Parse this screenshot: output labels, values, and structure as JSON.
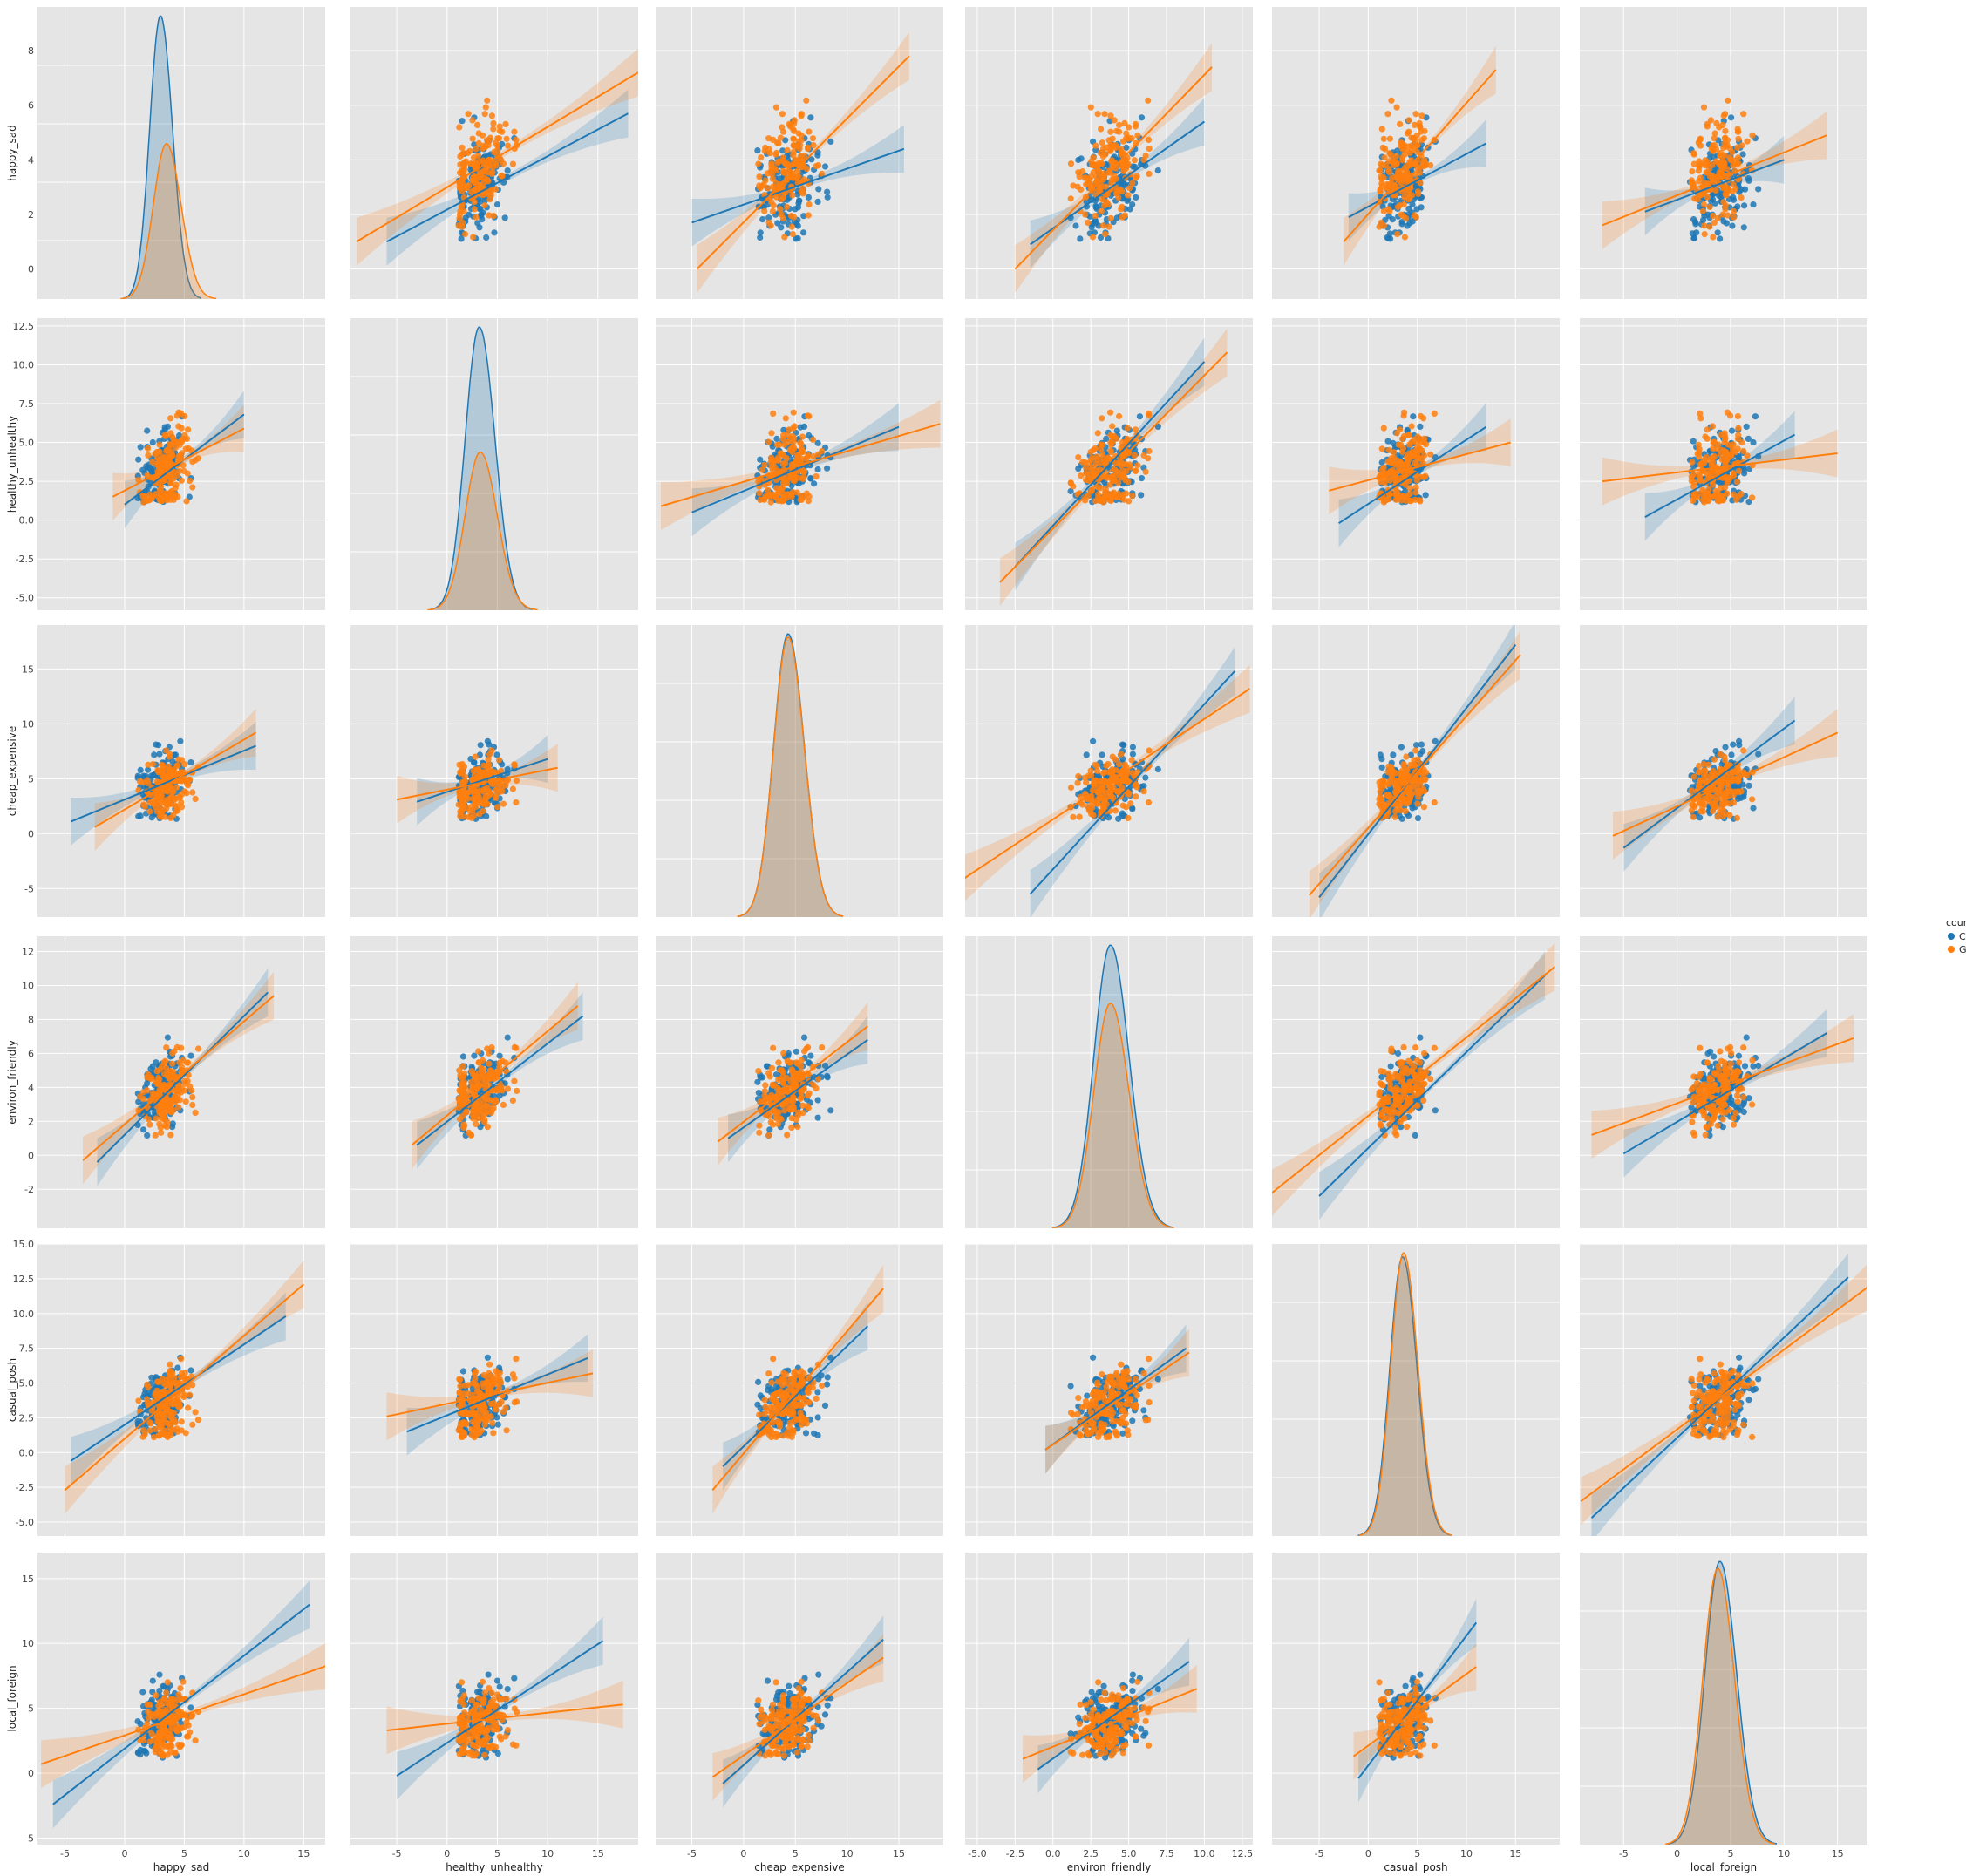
{
  "chart_data": {
    "type": "pairplot",
    "variables": [
      "happy_sad",
      "healthy_unhealthy",
      "cheap_expensive",
      "environ_friendly",
      "casual_posh",
      "local_foreign"
    ],
    "hue": "country",
    "legend": {
      "title": "country",
      "position": "right-center",
      "entries": [
        {
          "name": "China",
          "color": "#1f77b4"
        },
        {
          "name": "Great Britain",
          "color": "#ff7f0e"
        }
      ]
    },
    "background": "#e5e5e5",
    "grid": true,
    "axes": {
      "happy_sad": {
        "range": [
          -7.3,
          16.8
        ],
        "ticks": [
          -5,
          0,
          5,
          10,
          15
        ],
        "tick_labels": [
          "-5",
          "0",
          "5",
          "10",
          "15"
        ]
      },
      "healthy_unhealthy": {
        "range": [
          -9.6,
          19
        ],
        "ticks": [
          -5,
          0,
          5,
          10,
          15
        ],
        "tick_labels": [
          "-5",
          "0",
          "5",
          "10",
          "15"
        ]
      },
      "cheap_expensive": {
        "range": [
          -8.5,
          19.3
        ],
        "ticks": [
          -5,
          0,
          5,
          10,
          15
        ],
        "tick_labels": [
          "-5",
          "0",
          "5",
          "10",
          "15"
        ]
      },
      "environ_friendly": {
        "range": [
          -5.8,
          13.2
        ],
        "ticks": [
          -5,
          -2.5,
          0,
          2.5,
          5,
          7.5,
          10,
          12.5
        ],
        "tick_labels": [
          "-5.0",
          "-2.5",
          "0.0",
          "2.5",
          "5.0",
          "7.5",
          "10.0",
          "12.5"
        ]
      },
      "casual_posh": {
        "range": [
          -9.8,
          19.5
        ],
        "ticks": [
          -5,
          0,
          5,
          10,
          15
        ],
        "tick_labels": [
          "-5",
          "0",
          "5",
          "10",
          "15"
        ]
      },
      "local_foreign": {
        "range": [
          -9.1,
          17.8
        ],
        "ticks": [
          -5,
          0,
          5,
          10,
          15
        ],
        "tick_labels": [
          "-5",
          "0",
          "5",
          "10",
          "15"
        ]
      }
    },
    "row_axes": {
      "happy_sad": {
        "range": [
          -1.1,
          9.6
        ],
        "ticks": [
          0,
          2,
          4,
          6,
          8
        ],
        "tick_labels": [
          "0",
          "2",
          "4",
          "6",
          "8"
        ]
      },
      "healthy_unhealthy": {
        "range": [
          -5.8,
          13
        ],
        "ticks": [
          -5,
          -2.5,
          0,
          2.5,
          5,
          7.5,
          10,
          12.5
        ],
        "tick_labels": [
          "-5.0",
          "-2.5",
          "0.0",
          "2.5",
          "5.0",
          "7.5",
          "10.0",
          "12.5"
        ]
      },
      "cheap_expensive": {
        "range": [
          -7.6,
          19
        ],
        "ticks": [
          -5,
          0,
          5,
          10,
          15
        ],
        "tick_labels": [
          "-5",
          "0",
          "5",
          "10",
          "15"
        ]
      },
      "environ_friendly": {
        "range": [
          -4.3,
          12.9
        ],
        "ticks": [
          -2,
          0,
          2,
          4,
          6,
          8,
          10,
          12
        ],
        "tick_labels": [
          "-2",
          "0",
          "2",
          "4",
          "6",
          "8",
          "10",
          "12"
        ]
      },
      "casual_posh": {
        "range": [
          -6,
          15
        ],
        "ticks": [
          -5,
          -2.5,
          0,
          2.5,
          5,
          7.5,
          10,
          12.5,
          15
        ],
        "tick_labels": [
          "-5.0",
          "-2.5",
          "0.0",
          "2.5",
          "5.0",
          "7.5",
          "10.0",
          "12.5",
          "15.0"
        ]
      },
      "local_foreign": {
        "range": [
          -5.5,
          17
        ],
        "ticks": [
          -5,
          0,
          5,
          10,
          15
        ],
        "tick_labels": [
          "-5",
          "0",
          "5",
          "10",
          "15"
        ]
      }
    },
    "stats": {
      "China": {
        "means": [
          3.0,
          3.2,
          4.3,
          3.8,
          3.5,
          4.0
        ],
        "sds": [
          0.9,
          1.4,
          1.4,
          1.1,
          1.3,
          1.4
        ],
        "kde_peak": [
          9.3,
          12.0,
          17.8,
          12.2,
          13.8,
          16.2
        ]
      },
      "Great Britain": {
        "means": [
          3.5,
          3.3,
          4.3,
          3.8,
          3.6,
          3.8
        ],
        "sds": [
          1.1,
          1.5,
          1.4,
          1.1,
          1.3,
          1.4
        ],
        "kde_peak": [
          5.1,
          6.7,
          17.6,
          9.7,
          14.0,
          15.8
        ]
      }
    },
    "regression_lines": {
      "description": "[row][col] pairs of [x0,y0,x1,y1] in data units",
      "China": [
        [
          null,
          [
            -6,
            1.0,
            18,
            5.7
          ],
          [
            -5,
            1.7,
            15.5,
            4.4
          ],
          [
            -1.5,
            0.9,
            10,
            5.4
          ],
          [
            -2,
            1.9,
            12,
            4.6
          ],
          [
            -3,
            2.1,
            10,
            4.0
          ]
        ],
        [
          [
            0,
            1.0,
            10,
            6.8
          ],
          null,
          [
            -5,
            0.5,
            15,
            6.0
          ],
          [
            -2.5,
            -3.0,
            10,
            10.2
          ],
          [
            -3,
            -0.2,
            12,
            6.0
          ],
          [
            -3,
            0.2,
            11,
            5.5
          ]
        ],
        [
          [
            -4.5,
            1.1,
            11,
            8.0
          ],
          [
            -3,
            2.9,
            10,
            6.8
          ],
          null,
          [
            -1.5,
            -5.5,
            12,
            14.8
          ],
          [
            -5,
            -5.8,
            15,
            17.2
          ],
          [
            -5,
            -1.3,
            11,
            10.3
          ]
        ],
        [
          [
            -2.3,
            -0.4,
            12,
            9.6
          ],
          [
            -3,
            0.6,
            13.5,
            8.2
          ],
          [
            -1.5,
            1.0,
            12,
            6.8
          ],
          null,
          [
            -5,
            -2.4,
            18,
            10.6
          ],
          [
            -5,
            0.1,
            14,
            7.2
          ]
        ],
        [
          [
            -4.5,
            -0.6,
            13.5,
            9.8
          ],
          [
            -4,
            1.5,
            14,
            6.8
          ],
          [
            -2,
            -1.0,
            12,
            9.1
          ],
          [
            -0.5,
            0.2,
            8.8,
            7.5
          ],
          null,
          [
            -8,
            -4.7,
            16,
            12.6
          ]
        ],
        [
          [
            -6,
            -2.4,
            15.5,
            13.0
          ],
          [
            -5,
            -0.2,
            15.5,
            10.2
          ],
          [
            -2,
            -0.8,
            13.5,
            10.3
          ],
          [
            -1,
            0.3,
            9,
            8.6
          ],
          [
            -1,
            -0.4,
            11,
            11.6
          ],
          null
        ]
      ],
      "Great Britain": [
        [
          null,
          [
            -9,
            1.0,
            19,
            7.2
          ],
          [
            -4.5,
            0.0,
            16,
            7.8
          ],
          [
            -2.5,
            0.0,
            10.5,
            7.4
          ],
          [
            -2.5,
            1.0,
            13,
            7.3
          ],
          [
            -7,
            1.6,
            14,
            4.9
          ]
        ],
        [
          [
            -1,
            1.5,
            10,
            5.9
          ],
          null,
          [
            -8,
            0.9,
            19,
            6.2
          ],
          [
            -3.5,
            -4.0,
            11.5,
            10.8
          ],
          [
            -4,
            1.9,
            14.5,
            5.0
          ],
          [
            -7,
            2.5,
            15,
            4.3
          ]
        ],
        [
          [
            -2.5,
            0.6,
            11,
            9.2
          ],
          [
            -5,
            3.1,
            11,
            6.0
          ],
          null,
          [
            -6,
            -4.2,
            13,
            13.2
          ],
          [
            -6,
            -5.6,
            15.5,
            16.3
          ],
          [
            -6,
            -0.2,
            15,
            9.2
          ]
        ],
        [
          [
            -3.5,
            -0.3,
            12.5,
            9.4
          ],
          [
            -3.5,
            0.6,
            13,
            8.8
          ],
          [
            -2.5,
            0.8,
            12,
            7.6
          ],
          null,
          [
            -10,
            -2.3,
            19,
            11.1
          ],
          [
            -8,
            1.2,
            16.5,
            6.9
          ]
        ],
        [
          [
            -5,
            -2.7,
            15,
            12.1
          ],
          [
            -6,
            2.6,
            14.5,
            5.7
          ],
          [
            -3,
            -2.7,
            13.5,
            11.8
          ],
          [
            -0.5,
            0.2,
            9,
            7.2
          ],
          null,
          [
            -9,
            -3.5,
            18,
            12.0
          ]
        ],
        [
          [
            -7,
            0.7,
            17,
            8.3
          ],
          [
            -6,
            3.3,
            17.5,
            5.3
          ],
          [
            -3,
            -0.3,
            13.5,
            8.9
          ],
          [
            -2,
            1.1,
            9.5,
            6.5
          ],
          [
            -1.5,
            1.3,
            11,
            8.2
          ],
          null
        ]
      ]
    },
    "points_per_country": 160,
    "marker_colors": {
      "China": "#1f77b4",
      "Great Britain": "#ff7f0e"
    }
  },
  "labels": {
    "x": [
      "happy_sad",
      "healthy_unhealthy",
      "cheap_expensive",
      "environ_friendly",
      "casual_posh",
      "local_foreign"
    ],
    "y": [
      "happy_sad",
      "healthy_unhealthy",
      "cheap_expensive",
      "environ_friendly",
      "casual_posh",
      "local_foreign"
    ],
    "legend_title": "country",
    "legend_items": [
      "China",
      "Great Britain"
    ]
  }
}
